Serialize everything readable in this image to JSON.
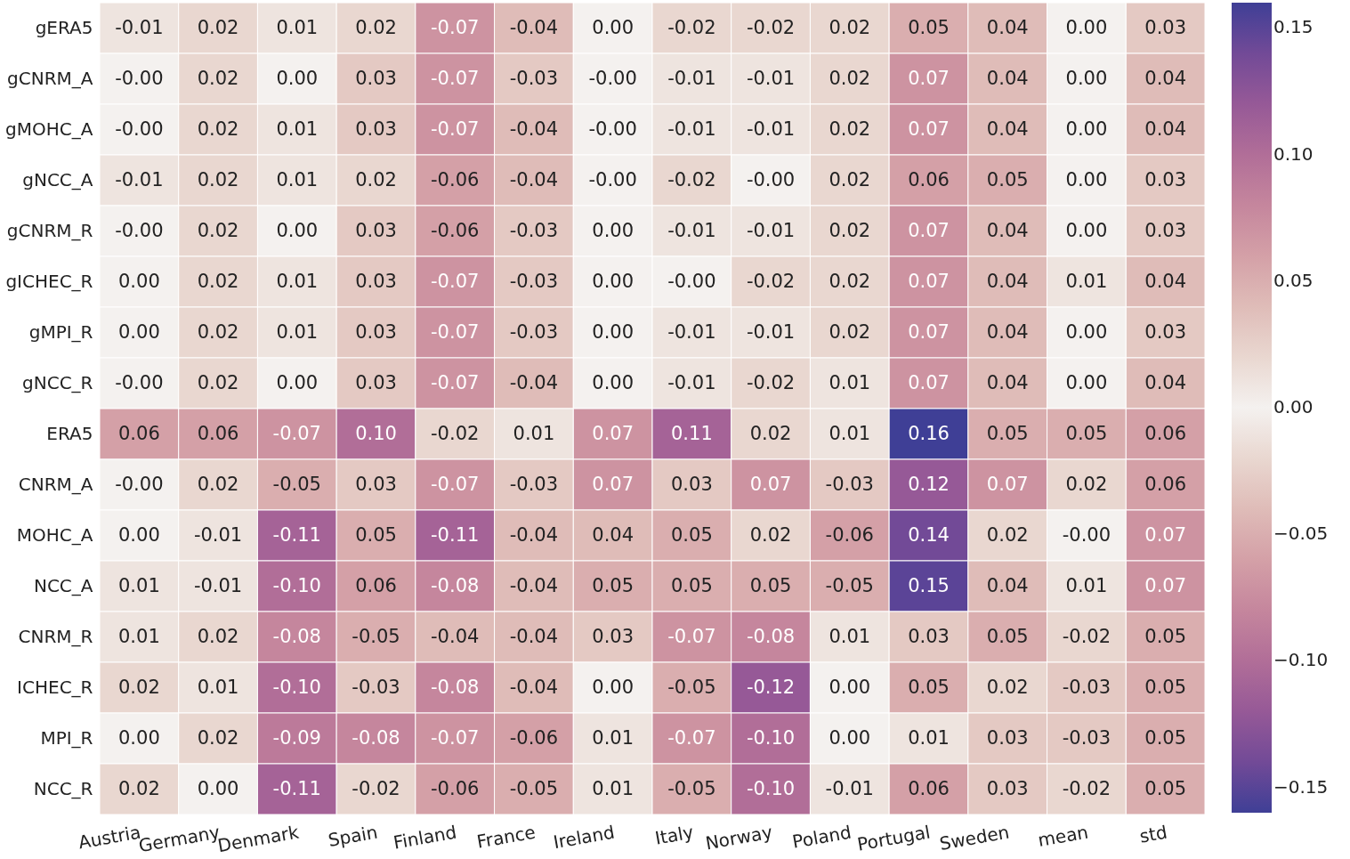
{
  "chart_data": {
    "type": "heatmap",
    "categories": [
      "Austria",
      "Germany",
      "Denmark",
      "Spain",
      "Finland",
      "France",
      "Ireland",
      "Italy",
      "Norway",
      "Poland",
      "Portugal",
      "Sweden",
      "mean",
      "std"
    ],
    "y_categories": [
      "gERA5",
      "gCNRM_A",
      "gMOHC_A",
      "gNCC_A",
      "gCNRM_R",
      "gICHEC_R",
      "gMPI_R",
      "gNCC_R",
      "ERA5",
      "CNRM_A",
      "MOHC_A",
      "NCC_A",
      "CNRM_R",
      "ICHEC_R",
      "MPI_R",
      "NCC_R"
    ],
    "cells": [
      [
        -0.01,
        0.02,
        0.01,
        0.02,
        -0.07,
        -0.04,
        0.0,
        -0.02,
        -0.02,
        0.02,
        0.05,
        0.04,
        0.0,
        0.03
      ],
      [
        0.0,
        0.02,
        0.0,
        0.03,
        -0.07,
        -0.03,
        0.0,
        -0.01,
        -0.01,
        0.02,
        0.07,
        0.04,
        0.0,
        0.04
      ],
      [
        0.0,
        0.02,
        0.01,
        0.03,
        -0.07,
        -0.04,
        0.0,
        -0.01,
        -0.01,
        0.02,
        0.07,
        0.04,
        0.0,
        0.04
      ],
      [
        -0.01,
        0.02,
        0.01,
        0.02,
        -0.06,
        -0.04,
        0.0,
        -0.02,
        0.0,
        0.02,
        0.06,
        0.05,
        0.0,
        0.03
      ],
      [
        0.0,
        0.02,
        0.0,
        0.03,
        -0.06,
        -0.03,
        0.0,
        -0.01,
        -0.01,
        0.02,
        0.07,
        0.04,
        0.0,
        0.03
      ],
      [
        0.0,
        0.02,
        0.01,
        0.03,
        -0.07,
        -0.03,
        0.0,
        0.0,
        -0.02,
        0.02,
        0.07,
        0.04,
        0.01,
        0.04
      ],
      [
        0.0,
        0.02,
        0.01,
        0.03,
        -0.07,
        -0.03,
        0.0,
        -0.01,
        -0.01,
        0.02,
        0.07,
        0.04,
        0.0,
        0.03
      ],
      [
        0.0,
        0.02,
        0.0,
        0.03,
        -0.07,
        -0.04,
        0.0,
        -0.01,
        -0.02,
        0.01,
        0.07,
        0.04,
        0.0,
        0.04
      ],
      [
        0.06,
        0.06,
        -0.07,
        0.1,
        -0.02,
        0.01,
        0.07,
        0.11,
        0.02,
        0.01,
        0.16,
        0.05,
        0.05,
        0.06
      ],
      [
        0.0,
        0.02,
        -0.05,
        0.03,
        -0.07,
        -0.03,
        0.07,
        0.03,
        0.07,
        -0.03,
        0.12,
        0.07,
        0.02,
        0.06
      ],
      [
        0.0,
        -0.01,
        -0.11,
        0.05,
        -0.11,
        -0.04,
        0.04,
        0.05,
        0.02,
        -0.06,
        0.14,
        0.02,
        0.0,
        0.07
      ],
      [
        0.01,
        -0.01,
        -0.1,
        0.06,
        -0.08,
        -0.04,
        0.05,
        0.05,
        0.05,
        -0.05,
        0.15,
        0.04,
        0.01,
        0.07
      ],
      [
        0.01,
        0.02,
        -0.08,
        -0.05,
        -0.04,
        -0.04,
        0.03,
        -0.07,
        -0.08,
        0.01,
        0.03,
        0.05,
        -0.02,
        0.05
      ],
      [
        0.02,
        0.01,
        -0.1,
        -0.03,
        -0.08,
        -0.04,
        0.0,
        -0.05,
        -0.12,
        0.0,
        0.05,
        0.02,
        -0.03,
        0.05
      ],
      [
        0.0,
        0.02,
        -0.09,
        -0.08,
        -0.07,
        -0.06,
        0.01,
        -0.07,
        -0.1,
        0.0,
        0.01,
        0.03,
        -0.03,
        0.05
      ],
      [
        0.02,
        0.0,
        -0.11,
        -0.02,
        -0.06,
        -0.05,
        0.01,
        -0.05,
        -0.1,
        -0.01,
        0.06,
        0.03,
        -0.02,
        0.05
      ]
    ],
    "cell_labels": [
      [
        "-0.01",
        "0.02",
        "0.01",
        "0.02",
        "-0.07",
        "-0.04",
        "0.00",
        "-0.02",
        "-0.02",
        "0.02",
        "0.05",
        "0.04",
        "0.00",
        "0.03"
      ],
      [
        "-0.00",
        "0.02",
        "0.00",
        "0.03",
        "-0.07",
        "-0.03",
        "-0.00",
        "-0.01",
        "-0.01",
        "0.02",
        "0.07",
        "0.04",
        "0.00",
        "0.04"
      ],
      [
        "-0.00",
        "0.02",
        "0.01",
        "0.03",
        "-0.07",
        "-0.04",
        "-0.00",
        "-0.01",
        "-0.01",
        "0.02",
        "0.07",
        "0.04",
        "0.00",
        "0.04"
      ],
      [
        "-0.01",
        "0.02",
        "0.01",
        "0.02",
        "-0.06",
        "-0.04",
        "-0.00",
        "-0.02",
        "-0.00",
        "0.02",
        "0.06",
        "0.05",
        "0.00",
        "0.03"
      ],
      [
        "-0.00",
        "0.02",
        "0.00",
        "0.03",
        "-0.06",
        "-0.03",
        "0.00",
        "-0.01",
        "-0.01",
        "0.02",
        "0.07",
        "0.04",
        "0.00",
        "0.03"
      ],
      [
        "0.00",
        "0.02",
        "0.01",
        "0.03",
        "-0.07",
        "-0.03",
        "0.00",
        "-0.00",
        "-0.02",
        "0.02",
        "0.07",
        "0.04",
        "0.01",
        "0.04"
      ],
      [
        "0.00",
        "0.02",
        "0.01",
        "0.03",
        "-0.07",
        "-0.03",
        "0.00",
        "-0.01",
        "-0.01",
        "0.02",
        "0.07",
        "0.04",
        "0.00",
        "0.03"
      ],
      [
        "-0.00",
        "0.02",
        "0.00",
        "0.03",
        "-0.07",
        "-0.04",
        "0.00",
        "-0.01",
        "-0.02",
        "0.01",
        "0.07",
        "0.04",
        "0.00",
        "0.04"
      ],
      [
        "0.06",
        "0.06",
        "-0.07",
        "0.10",
        "-0.02",
        "0.01",
        "0.07",
        "0.11",
        "0.02",
        "0.01",
        "0.16",
        "0.05",
        "0.05",
        "0.06"
      ],
      [
        "-0.00",
        "0.02",
        "-0.05",
        "0.03",
        "-0.07",
        "-0.03",
        "0.07",
        "0.03",
        "0.07",
        "-0.03",
        "0.12",
        "0.07",
        "0.02",
        "0.06"
      ],
      [
        "0.00",
        "-0.01",
        "-0.11",
        "0.05",
        "-0.11",
        "-0.04",
        "0.04",
        "0.05",
        "0.02",
        "-0.06",
        "0.14",
        "0.02",
        "-0.00",
        "0.07"
      ],
      [
        "0.01",
        "-0.01",
        "-0.10",
        "0.06",
        "-0.08",
        "-0.04",
        "0.05",
        "0.05",
        "0.05",
        "-0.05",
        "0.15",
        "0.04",
        "0.01",
        "0.07"
      ],
      [
        "0.01",
        "0.02",
        "-0.08",
        "-0.05",
        "-0.04",
        "-0.04",
        "0.03",
        "-0.07",
        "-0.08",
        "0.01",
        "0.03",
        "0.05",
        "-0.02",
        "0.05"
      ],
      [
        "0.02",
        "0.01",
        "-0.10",
        "-0.03",
        "-0.08",
        "-0.04",
        "0.00",
        "-0.05",
        "-0.12",
        "0.00",
        "0.05",
        "0.02",
        "-0.03",
        "0.05"
      ],
      [
        "0.00",
        "0.02",
        "-0.09",
        "-0.08",
        "-0.07",
        "-0.06",
        "0.01",
        "-0.07",
        "-0.10",
        "0.00",
        "0.01",
        "0.03",
        "-0.03",
        "0.05"
      ],
      [
        "0.02",
        "0.00",
        "-0.11",
        "-0.02",
        "-0.06",
        "-0.05",
        "0.01",
        "-0.05",
        "-0.10",
        "-0.01",
        "0.06",
        "0.03",
        "-0.02",
        "0.05"
      ]
    ],
    "clim": [
      -0.16,
      0.16
    ],
    "cticks": [
      {
        "value": -0.15,
        "label": "−0.15"
      },
      {
        "value": -0.1,
        "label": "−0.10"
      },
      {
        "value": -0.05,
        "label": "−0.05"
      },
      {
        "value": 0,
        "label": "0.00"
      },
      {
        "value": 0.05,
        "label": "0.05"
      },
      {
        "value": 0.1,
        "label": "0.10"
      },
      {
        "value": 0.15,
        "label": "0.15"
      }
    ]
  }
}
